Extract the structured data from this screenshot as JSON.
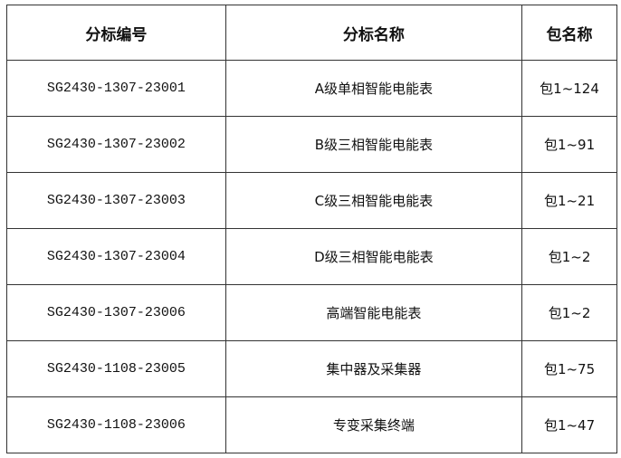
{
  "table": {
    "headers": [
      "分标编号",
      "分标名称",
      "包名称"
    ],
    "rows": [
      [
        "SG2430-1307-23001",
        "A级单相智能电能表",
        "包1~124"
      ],
      [
        "SG2430-1307-23002",
        "B级三相智能电能表",
        "包1~91"
      ],
      [
        "SG2430-1307-23003",
        "C级三相智能电能表",
        "包1~21"
      ],
      [
        "SG2430-1307-23004",
        "D级三相智能电能表",
        "包1~2"
      ],
      [
        "SG2430-1307-23006",
        "高端智能电能表",
        "包1~2"
      ],
      [
        "SG2430-1108-23005",
        "集中器及采集器",
        "包1~75"
      ],
      [
        "SG2430-1108-23006",
        "专变采集终端",
        "包1~47"
      ]
    ]
  }
}
